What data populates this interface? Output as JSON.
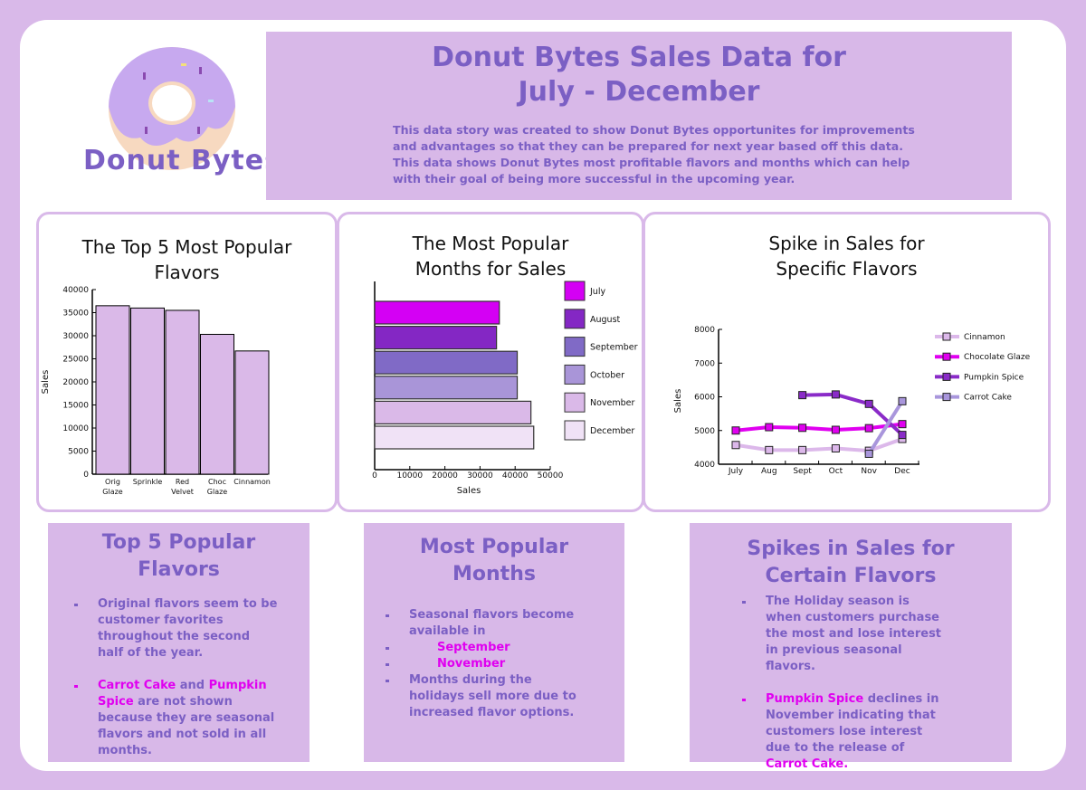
{
  "brand": {
    "name": "Donut Bytes",
    "logo_icon": "donut-icon"
  },
  "header": {
    "title_line1": "Donut Bytes Sales Data for",
    "title_line2": "July - December",
    "description": "This data story was created to show Donut Bytes opportunites for improvements and advantages so that they can be prepared for next year based off this data. This data shows Donut Bytes most profitable flavors and months which can help with their goal of being more successful in the upcoming year."
  },
  "colors": {
    "accent": "#7b5fc4",
    "highlight": "#e000f0",
    "panel": "#d8b8e8"
  },
  "chart_data": [
    {
      "type": "bar",
      "title": "The Top 5 Most Popular Flavors",
      "xlabel": "",
      "ylabel": "Sales",
      "ylim": [
        0,
        40000
      ],
      "yticks": [
        0,
        5000,
        10000,
        15000,
        20000,
        25000,
        30000,
        35000,
        40000
      ],
      "categories": [
        [
          "Orig",
          "Glaze"
        ],
        [
          "Sprinkle",
          ""
        ],
        [
          "Red",
          "Velvet"
        ],
        [
          "Choc",
          "Glaze"
        ],
        [
          "Cinnamon",
          ""
        ]
      ],
      "values": [
        36500,
        36000,
        35500,
        30300,
        26700
      ],
      "color": "#dab9e8",
      "grid": false
    },
    {
      "type": "bar",
      "orientation": "horizontal",
      "title": "The Most Popular Months for Sales",
      "xlabel": "Sales",
      "ylabel": "",
      "xlim": [
        0,
        50000
      ],
      "xticks": [
        0,
        10000,
        20000,
        30000,
        40000,
        50000
      ],
      "categories": [
        "July",
        "August",
        "September",
        "October",
        "November",
        "December"
      ],
      "values": [
        35500,
        34700,
        40600,
        40600,
        44500,
        45300
      ],
      "colors": [
        "#d400f4",
        "#8427c4",
        "#806ac6",
        "#a995d8",
        "#dab9e8",
        "#f0e2f6"
      ],
      "legend": "right",
      "grid": false
    },
    {
      "type": "line",
      "title": "Spike in Sales for Specific Flavors",
      "xlabel": "",
      "ylabel": "Sales",
      "ylim": [
        4000,
        8000
      ],
      "yticks": [
        4000,
        5000,
        6000,
        7000,
        8000
      ],
      "x": [
        "July",
        "Aug",
        "Sept",
        "Oct",
        "Nov",
        "Dec"
      ],
      "series": [
        {
          "name": "Cinnamon",
          "color": "#dcb8ea",
          "values": [
            4570,
            4420,
            4420,
            4470,
            4400,
            4750
          ]
        },
        {
          "name": "Chocolate Glaze",
          "color": "#e000f0",
          "values": [
            5000,
            5100,
            5080,
            5020,
            5070,
            5190
          ]
        },
        {
          "name": "Pumpkin Spice",
          "color": "#8a2bc8",
          "values": [
            null,
            null,
            6050,
            6070,
            5790,
            4870
          ]
        },
        {
          "name": "Carrot Cake",
          "color": "#a996dc",
          "values": [
            null,
            null,
            null,
            null,
            4310,
            5870
          ]
        }
      ],
      "legend": "right",
      "grid": false
    }
  ],
  "panels": {
    "flavors": {
      "title_line1": "Top 5 Popular",
      "title_line2": "Flavors",
      "bullet1": "Original flavors seem to be customer favorites throughout the second half of the year.",
      "b2_hl1": "Carrot Cake",
      "b2_t1": " and ",
      "b2_hl2": "Pumpkin Spice",
      "b2_t2": " are not shown because they are seasonal flavors and not sold in all months."
    },
    "months": {
      "title_line1": "Most Popular",
      "title_line2": "Months",
      "bullet1": "Seasonal flavors become available in",
      "sub1": "September",
      "sub2": "November",
      "bullet2": "Months during the holidays sell more due to increased flavor options."
    },
    "spikes": {
      "title_line1": "Spikes in Sales for",
      "title_line2": "Certain Flavors",
      "bullet1": "The Holiday season is when customers purchase the most and lose interest in previous seasonal flavors.",
      "b2_hl1": "Pumpkin Spice",
      "b2_t1": " declines in November indicating that customers lose interest due to the release of ",
      "b2_hl2": "Carrot Cake."
    }
  }
}
